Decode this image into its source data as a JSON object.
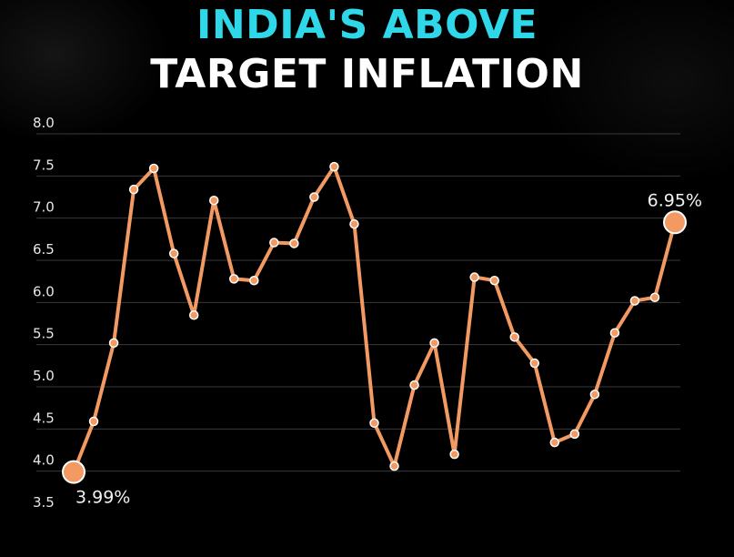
{
  "title": {
    "line1": "INDIA'S ABOVE",
    "line2": "TARGET INFLATION"
  },
  "colors": {
    "background": "#000000",
    "title_accent": "#2fd8e8",
    "title_main": "#ffffff",
    "line": "#f39a63",
    "grid": "#3a3a3a",
    "tick_text": "#e6e6e6"
  },
  "chart_data": {
    "type": "line",
    "title": "INDIA'S ABOVE TARGET INFLATION",
    "xlabel": "",
    "ylabel": "",
    "ylim": [
      3.5,
      8.0
    ],
    "yticks": [
      "3.5",
      "4.0",
      "4.5",
      "5.0",
      "5.5",
      "6.0",
      "6.5",
      "7.0",
      "7.5",
      "8.0"
    ],
    "grid": true,
    "series": [
      {
        "values": [
          3.99,
          4.59,
          5.52,
          7.34,
          7.59,
          6.58,
          5.85,
          7.21,
          6.28,
          6.26,
          6.71,
          6.7,
          7.25,
          7.61,
          6.93,
          4.57,
          4.06,
          5.02,
          5.52,
          4.2,
          6.3,
          6.26,
          5.59,
          5.28,
          4.34,
          4.44,
          4.91,
          5.64,
          6.02,
          6.06,
          6.95
        ]
      }
    ],
    "annotations": [
      {
        "index": 0,
        "label": "3.99%"
      },
      {
        "index": 30,
        "label": "6.95%"
      }
    ]
  }
}
